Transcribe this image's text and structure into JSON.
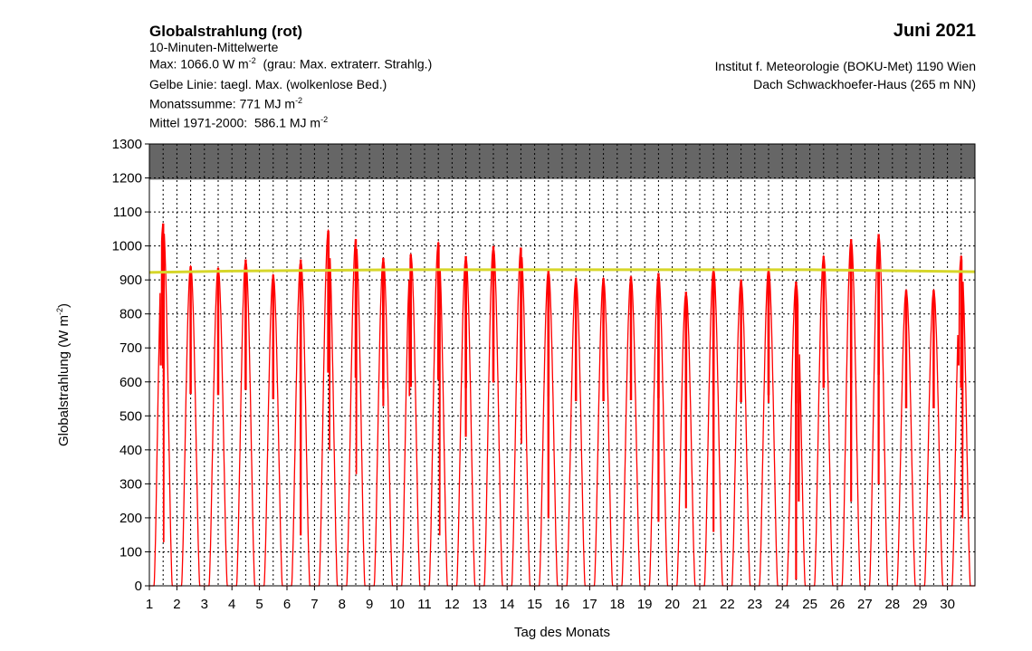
{
  "header": {
    "title": "Globalstrahlung (rot)",
    "line1": "10-Minuten-Mittelwerte",
    "line2_pre": "Max: 1066.0 W m",
    "line2_exp": "-2",
    "line2_post": "  (grau: Max. extraterr. Strahlg.)",
    "line3": "Gelbe Linie: taegl. Max. (wolkenlose Bed.)",
    "line4_pre": "Monatssumme: 771 MJ m",
    "line4_exp": "-2",
    "line5_pre": "Mittel 1971-2000:  586.1 MJ m",
    "line5_exp": "-2",
    "month": "Juni 2021",
    "institute": "Institut f. Meteorologie (BOKU-Met) 1190 Wien",
    "location": "Dach Schwackhoefer-Haus (265 m NN)"
  },
  "chart_data": {
    "type": "line",
    "xlabel": "Tag des Monats",
    "ylabel_pre": "Globalstrahlung (W m",
    "ylabel_exp": "-2",
    "ylabel_post": ")",
    "xlim": [
      1,
      31
    ],
    "ylim": [
      0,
      1300
    ],
    "x_ticks": [
      1,
      2,
      3,
      4,
      5,
      6,
      7,
      8,
      9,
      10,
      11,
      12,
      13,
      14,
      15,
      16,
      17,
      18,
      19,
      20,
      21,
      22,
      23,
      24,
      25,
      26,
      27,
      28,
      29,
      30
    ],
    "y_ticks": [
      0,
      100,
      200,
      300,
      400,
      500,
      600,
      700,
      800,
      900,
      1000,
      1100,
      1200,
      1300
    ],
    "grid": true,
    "extraterrestrial_max_gray": [
      1195,
      1197
    ],
    "clearsky_daily_max_yellow": [
      922,
      930
    ],
    "colors": {
      "series": "#ff0000",
      "clearsky": "#d6d62a",
      "extraterrestrial": "#666666"
    },
    "daily_peaks": [
      1066,
      940,
      935,
      960,
      915,
      960,
      1045,
      1020,
      965,
      975,
      1010,
      970,
      1000,
      995,
      930,
      905,
      905,
      910,
      920,
      865,
      935,
      900,
      935,
      895,
      970,
      1020,
      1035,
      870,
      870,
      970
    ],
    "daily_dips": [
      [
        [
          0.42,
          650
        ],
        [
          0.52,
          130
        ]
      ],
      [],
      [],
      [
        [
          0.5,
          580
        ]
      ],
      [],
      [
        [
          0.5,
          150
        ]
      ],
      [
        [
          0.55,
          400
        ]
      ],
      [
        [
          0.52,
          330
        ]
      ],
      [
        [
          0.5,
          530
        ]
      ],
      [
        [
          0.45,
          560
        ]
      ],
      [
        [
          0.55,
          150
        ]
      ],
      [
        [
          0.5,
          440
        ]
      ],
      [
        [
          0.5,
          600
        ]
      ],
      [
        [
          0.52,
          420
        ]
      ],
      [
        [
          0.5,
          200
        ]
      ],
      [],
      [],
      [],
      [
        [
          0.5,
          190
        ]
      ],
      [
        [
          0.5,
          230
        ]
      ],
      [
        [
          0.5,
          160
        ]
      ],
      [],
      [
        [
          0.5,
          540
        ]
      ],
      [
        [
          0.5,
          20
        ],
        [
          0.6,
          250
        ]
      ],
      [],
      [
        [
          0.5,
          250
        ]
      ],
      [
        [
          0.5,
          300
        ]
      ],
      [],
      [],
      [
        [
          0.4,
          650
        ],
        [
          0.55,
          200
        ]
      ]
    ]
  }
}
